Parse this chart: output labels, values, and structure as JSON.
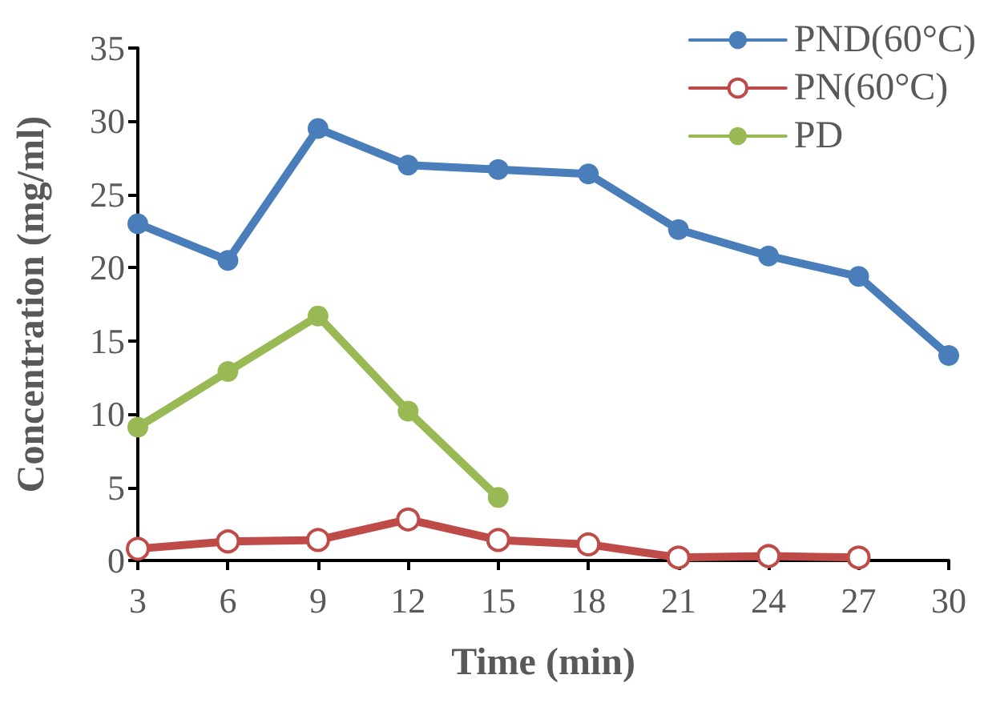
{
  "chart_data": {
    "type": "line",
    "xlabel": "Time (min)",
    "ylabel": "Concentration (mg/ml)",
    "categories": [
      "3",
      "6",
      "9",
      "12",
      "15",
      "18",
      "21",
      "24",
      "27",
      "30"
    ],
    "series": [
      {
        "name": "PND(60°C)",
        "color": "#4a7ebb",
        "values": [
          23,
          20.5,
          29.5,
          27,
          26.7,
          26.4,
          22.6,
          20.8,
          19.4,
          14
        ]
      },
      {
        "name": "PN(60°C)",
        "color": "#be4b48",
        "values": [
          0.8,
          1.3,
          1.4,
          2.8,
          1.4,
          1.1,
          0.2,
          0.3,
          0.2,
          null
        ]
      },
      {
        "name": "PD",
        "color": "#98b954",
        "values": [
          9.1,
          12.9,
          16.7,
          10.2,
          4.3,
          null,
          null,
          null,
          null,
          null
        ]
      }
    ],
    "ylim": [
      0,
      35
    ],
    "yticks": [
      0,
      5,
      10,
      15,
      20,
      25,
      30,
      35
    ],
    "grid": false,
    "legend": "top right",
    "marker": "circle",
    "line_style": "solid"
  }
}
